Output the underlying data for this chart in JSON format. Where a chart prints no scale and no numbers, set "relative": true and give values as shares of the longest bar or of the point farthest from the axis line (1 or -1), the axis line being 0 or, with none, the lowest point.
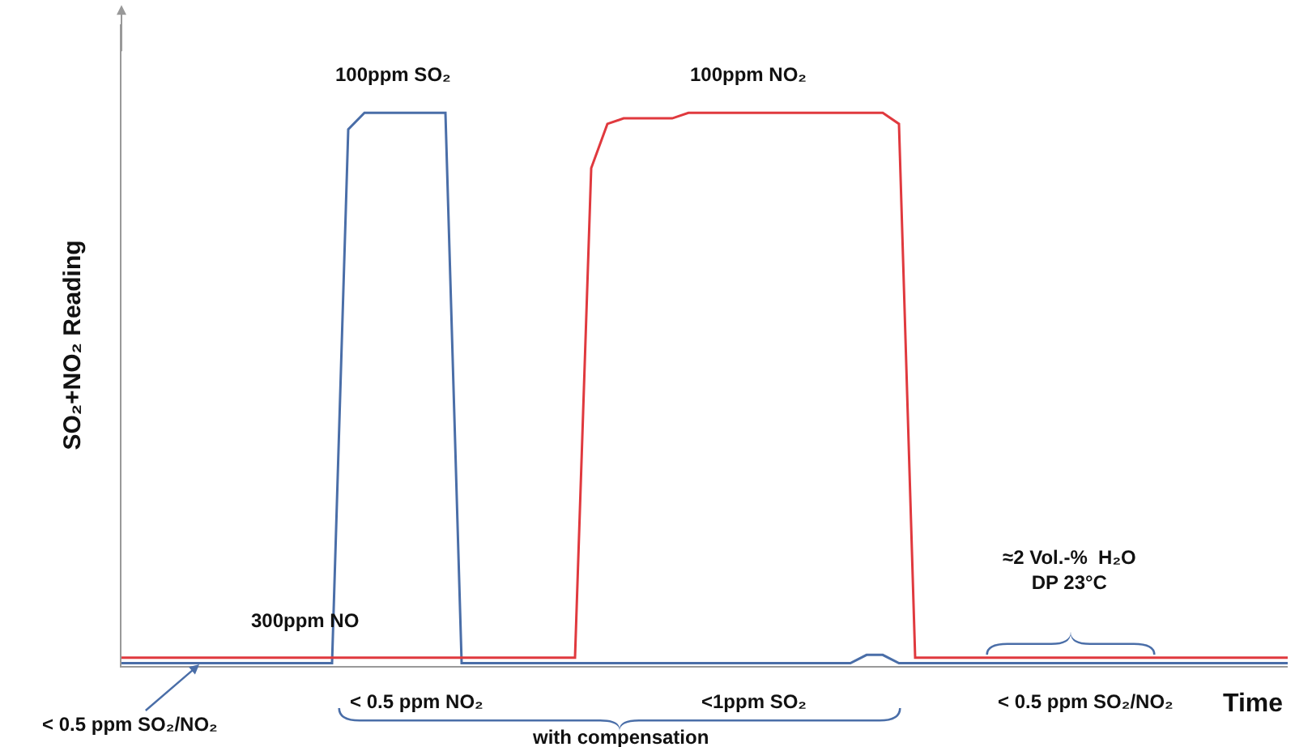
{
  "chart_data": {
    "type": "line",
    "relative": true,
    "xlabel": "Time",
    "ylabel": "SO₂+NO₂ Reading",
    "categories": [
      null,
      null,
      null,
      null,
      null,
      null,
      null,
      null,
      null,
      null,
      null,
      null,
      null,
      null,
      null,
      null,
      null,
      null,
      null,
      null,
      null,
      null,
      null,
      null,
      null,
      null,
      null,
      null,
      null,
      null,
      null,
      null,
      null,
      null,
      null,
      null,
      null,
      null,
      null,
      null,
      null,
      null,
      null,
      null,
      null,
      null,
      null,
      null,
      null,
      null,
      null,
      null,
      null,
      null,
      null,
      null,
      null,
      null,
      null,
      null,
      null,
      null,
      null,
      null,
      null,
      null,
      null,
      null,
      null,
      null,
      null,
      null,
      null
    ],
    "series": [
      {
        "color": "#4a6ea8",
        "values": [
          0.005,
          0.005,
          0.005,
          0.005,
          0.005,
          0.005,
          0.005,
          0.005,
          0.005,
          0.005,
          0.005,
          0.005,
          0.005,
          0.005,
          0.97,
          1,
          1,
          1,
          1,
          1,
          1,
          0.005,
          0.005,
          0.005,
          0.005,
          0.005,
          0.005,
          0.005,
          0.005,
          0.005,
          0.005,
          0.005,
          0.005,
          0.005,
          0.005,
          0.005,
          0.005,
          0.005,
          0.005,
          0.005,
          0.005,
          0.005,
          0.005,
          0.005,
          0.005,
          0.005,
          0.02,
          0.02,
          0.005,
          0.005,
          0.005,
          0.005,
          0.005,
          0.005,
          0.005,
          0.005,
          0.005,
          0.005,
          0.005,
          0.005,
          0.005,
          0.005,
          0.005,
          0.005,
          0.005,
          0.005,
          0.005,
          0.005,
          0.005,
          0.005,
          0.005,
          0.005,
          0.005
        ]
      },
      {
        "color": "#e0393e",
        "values": [
          0.015,
          0.015,
          0.015,
          0.015,
          0.015,
          0.015,
          0.015,
          0.015,
          0.015,
          0.015,
          0.015,
          0.015,
          0.015,
          0.015,
          0.015,
          0.015,
          0.015,
          0.015,
          0.015,
          0.015,
          0.015,
          0.015,
          0.015,
          0.015,
          0.015,
          0.015,
          0.015,
          0.015,
          0.015,
          0.9,
          0.98,
          0.99,
          0.99,
          0.99,
          0.99,
          1,
          1,
          1,
          1,
          1,
          1,
          1,
          1,
          1,
          1,
          1,
          1,
          1,
          0.98,
          0.015,
          0.015,
          0.015,
          0.015,
          0.015,
          0.015,
          0.015,
          0.015,
          0.015,
          0.015,
          0.015,
          0.015,
          0.015,
          0.015,
          0.015,
          0.015,
          0.015,
          0.015,
          0.015,
          0.015,
          0.015,
          0.015,
          0.015,
          0.015
        ]
      }
    ],
    "annotations": [
      "100ppm SO₂",
      "100ppm NO₂",
      "300ppm NO",
      "≈2 Vol.-%  H₂O\nDP 23°C",
      "< 0.5 ppm NO₂",
      "<1ppm SO₂",
      "< 0.5 ppm SO₂/NO₂",
      "< 0.5 ppm SO₂/NO₂",
      "with compensation"
    ]
  }
}
